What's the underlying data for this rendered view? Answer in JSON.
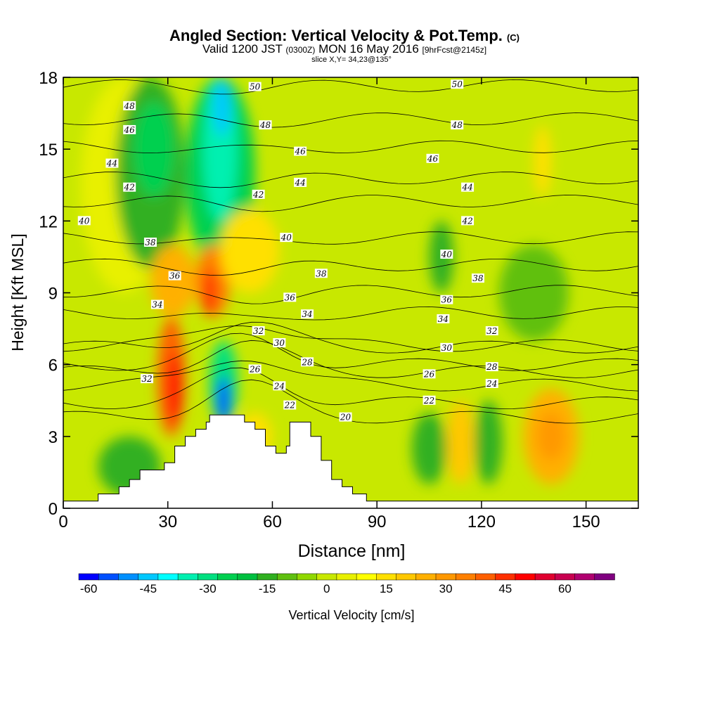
{
  "title": {
    "main": "Angled Section: Vertical Velocity & Pot.Temp.",
    "main_suffix": "(C)",
    "valid_prefix": "Valid 1200 JST",
    "valid_zulu": "(0300Z)",
    "valid_date": "MON 16 May 2016",
    "forecast": "[9hrFcst@2145z]",
    "slice": "slice X,Y= 34,23@135°"
  },
  "chart_data": {
    "type": "heatmap",
    "xlabel": "Distance [nm]",
    "ylabel": "Height [Kft MSL]",
    "xlim": [
      0,
      165
    ],
    "ylim": [
      0,
      18
    ],
    "x_ticks": [
      0,
      30,
      60,
      90,
      120,
      150
    ],
    "y_ticks": [
      0,
      3,
      6,
      9,
      12,
      15,
      18
    ],
    "colorbar": {
      "label": "Vertical Velocity [cm/s]",
      "min": -60,
      "max": 70,
      "step": 5,
      "tick_values": [
        -60,
        -45,
        -30,
        -15,
        0,
        15,
        30,
        45,
        60
      ],
      "colors": [
        "#0000ff",
        "#0050ff",
        "#0090ff",
        "#00c8ff",
        "#00ffff",
        "#00f0b0",
        "#00e080",
        "#00d050",
        "#00c040",
        "#30b020",
        "#60c010",
        "#90d800",
        "#c8e800",
        "#e8f000",
        "#ffff00",
        "#ffe000",
        "#ffc800",
        "#ffb000",
        "#ff9800",
        "#ff8000",
        "#ff6000",
        "#ff3000",
        "#ff0000",
        "#e00030",
        "#c80050",
        "#b00070",
        "#800080"
      ]
    },
    "velocity_cells": [
      {
        "x": [
          5,
          30
        ],
        "y": [
          9,
          18
        ],
        "w": 5
      },
      {
        "x": [
          15,
          35
        ],
        "y": [
          10,
          18
        ],
        "w": -15
      },
      {
        "x": [
          20,
          32
        ],
        "y": [
          13,
          17
        ],
        "w": -25
      },
      {
        "x": [
          35,
          55
        ],
        "y": [
          10,
          18
        ],
        "w": -25
      },
      {
        "x": [
          40,
          50
        ],
        "y": [
          12,
          18
        ],
        "w": -35
      },
      {
        "x": [
          43,
          48
        ],
        "y": [
          15.5,
          18
        ],
        "w": -45
      },
      {
        "x": [
          25,
          38
        ],
        "y": [
          8,
          11
        ],
        "w": 25
      },
      {
        "x": [
          27,
          35
        ],
        "y": [
          3,
          8
        ],
        "w": 40
      },
      {
        "x": [
          30,
          34
        ],
        "y": [
          3.5,
          6.5
        ],
        "w": 50
      },
      {
        "x": [
          38,
          48
        ],
        "y": [
          8,
          11
        ],
        "w": 35
      },
      {
        "x": [
          40,
          44
        ],
        "y": [
          8,
          10
        ],
        "w": 45
      },
      {
        "x": [
          45,
          62
        ],
        "y": [
          9,
          12.5
        ],
        "w": 15
      },
      {
        "x": [
          42,
          50
        ],
        "y": [
          3.5,
          7
        ],
        "w": -30
      },
      {
        "x": [
          44,
          48
        ],
        "y": [
          3.5,
          5.5
        ],
        "w": -55
      },
      {
        "x": [
          10,
          28
        ],
        "y": [
          0.5,
          3
        ],
        "w": -15
      },
      {
        "x": [
          50,
          60
        ],
        "y": [
          2,
          4
        ],
        "w": 15
      },
      {
        "x": [
          100,
          110
        ],
        "y": [
          1,
          4
        ],
        "w": -15
      },
      {
        "x": [
          110,
          118
        ],
        "y": [
          1,
          4.5
        ],
        "w": 20
      },
      {
        "x": [
          118,
          126
        ],
        "y": [
          1,
          4.5
        ],
        "w": -15
      },
      {
        "x": [
          132,
          148
        ],
        "y": [
          1,
          5
        ],
        "w": 25
      },
      {
        "x": [
          136,
          144
        ],
        "y": [
          2,
          4
        ],
        "w": 30
      },
      {
        "x": [
          105,
          112
        ],
        "y": [
          9,
          12
        ],
        "w": -15
      },
      {
        "x": [
          125,
          145
        ],
        "y": [
          7,
          11
        ],
        "w": -10
      },
      {
        "x": [
          135,
          140
        ],
        "y": [
          13,
          16
        ],
        "w": 15
      }
    ],
    "terrain": [
      [
        0,
        0.3
      ],
      [
        10,
        0.3
      ],
      [
        10,
        0.6
      ],
      [
        16,
        0.6
      ],
      [
        16,
        0.9
      ],
      [
        19,
        0.9
      ],
      [
        19,
        1.2
      ],
      [
        22,
        1.2
      ],
      [
        22,
        1.6
      ],
      [
        29,
        1.6
      ],
      [
        29,
        1.9
      ],
      [
        32,
        1.9
      ],
      [
        32,
        2.6
      ],
      [
        35,
        2.6
      ],
      [
        35,
        3.0
      ],
      [
        38,
        3.0
      ],
      [
        38,
        3.3
      ],
      [
        41,
        3.3
      ],
      [
        41,
        3.6
      ],
      [
        42,
        3.6
      ],
      [
        42,
        3.9
      ],
      [
        52,
        3.9
      ],
      [
        52,
        3.6
      ],
      [
        55,
        3.6
      ],
      [
        55,
        3.3
      ],
      [
        58,
        3.3
      ],
      [
        58,
        2.6
      ],
      [
        61,
        2.6
      ],
      [
        61,
        2.3
      ],
      [
        64,
        2.3
      ],
      [
        64,
        2.6
      ],
      [
        65,
        2.6
      ],
      [
        65,
        3.6
      ],
      [
        71,
        3.6
      ],
      [
        71,
        3.0
      ],
      [
        74,
        3.0
      ],
      [
        74,
        2.0
      ],
      [
        77,
        2.0
      ],
      [
        77,
        1.2
      ],
      [
        80,
        1.2
      ],
      [
        80,
        0.9
      ],
      [
        83,
        0.9
      ],
      [
        83,
        0.6
      ],
      [
        87,
        0.6
      ],
      [
        87,
        0.3
      ],
      [
        165,
        0.3
      ]
    ],
    "isentropes": {
      "units": "C",
      "levels": [
        20,
        22,
        24,
        26,
        28,
        30,
        32,
        34,
        36,
        38,
        40,
        42,
        44,
        46,
        48,
        50
      ],
      "labels": [
        {
          "text": "50",
          "x": 55,
          "y": 17.6
        },
        {
          "text": "50",
          "x": 113,
          "y": 17.7
        },
        {
          "text": "48",
          "x": 19,
          "y": 16.8
        },
        {
          "text": "48",
          "x": 58,
          "y": 16.0
        },
        {
          "text": "48",
          "x": 113,
          "y": 16.0
        },
        {
          "text": "46",
          "x": 19,
          "y": 15.8
        },
        {
          "text": "46",
          "x": 68,
          "y": 14.9
        },
        {
          "text": "46",
          "x": 106,
          "y": 14.6
        },
        {
          "text": "44",
          "x": 14,
          "y": 14.4
        },
        {
          "text": "44",
          "x": 68,
          "y": 13.6
        },
        {
          "text": "44",
          "x": 116,
          "y": 13.4
        },
        {
          "text": "42",
          "x": 19,
          "y": 13.4
        },
        {
          "text": "42",
          "x": 56,
          "y": 13.1
        },
        {
          "text": "42",
          "x": 116,
          "y": 12.0
        },
        {
          "text": "40",
          "x": 6,
          "y": 12.0
        },
        {
          "text": "40",
          "x": 64,
          "y": 11.3
        },
        {
          "text": "40",
          "x": 110,
          "y": 10.6
        },
        {
          "text": "38",
          "x": 25,
          "y": 11.1
        },
        {
          "text": "38",
          "x": 74,
          "y": 9.8
        },
        {
          "text": "38",
          "x": 119,
          "y": 9.6
        },
        {
          "text": "36",
          "x": 32,
          "y": 9.7
        },
        {
          "text": "36",
          "x": 65,
          "y": 8.8
        },
        {
          "text": "36",
          "x": 110,
          "y": 8.7
        },
        {
          "text": "34",
          "x": 27,
          "y": 8.5
        },
        {
          "text": "34",
          "x": 70,
          "y": 8.1
        },
        {
          "text": "34",
          "x": 109,
          "y": 7.9
        },
        {
          "text": "32",
          "x": 56,
          "y": 7.4
        },
        {
          "text": "32",
          "x": 123,
          "y": 7.4
        },
        {
          "text": "32",
          "x": 24,
          "y": 5.4
        },
        {
          "text": "30",
          "x": 62,
          "y": 6.9
        },
        {
          "text": "30",
          "x": 110,
          "y": 6.7
        },
        {
          "text": "28",
          "x": 70,
          "y": 6.1
        },
        {
          "text": "28",
          "x": 123,
          "y": 5.9
        },
        {
          "text": "26",
          "x": 55,
          "y": 5.8
        },
        {
          "text": "26",
          "x": 105,
          "y": 5.6
        },
        {
          "text": "24",
          "x": 62,
          "y": 5.1
        },
        {
          "text": "24",
          "x": 123,
          "y": 5.2
        },
        {
          "text": "22",
          "x": 65,
          "y": 4.3
        },
        {
          "text": "22",
          "x": 105,
          "y": 4.5
        },
        {
          "text": "20",
          "x": 81,
          "y": 3.8
        }
      ]
    }
  }
}
